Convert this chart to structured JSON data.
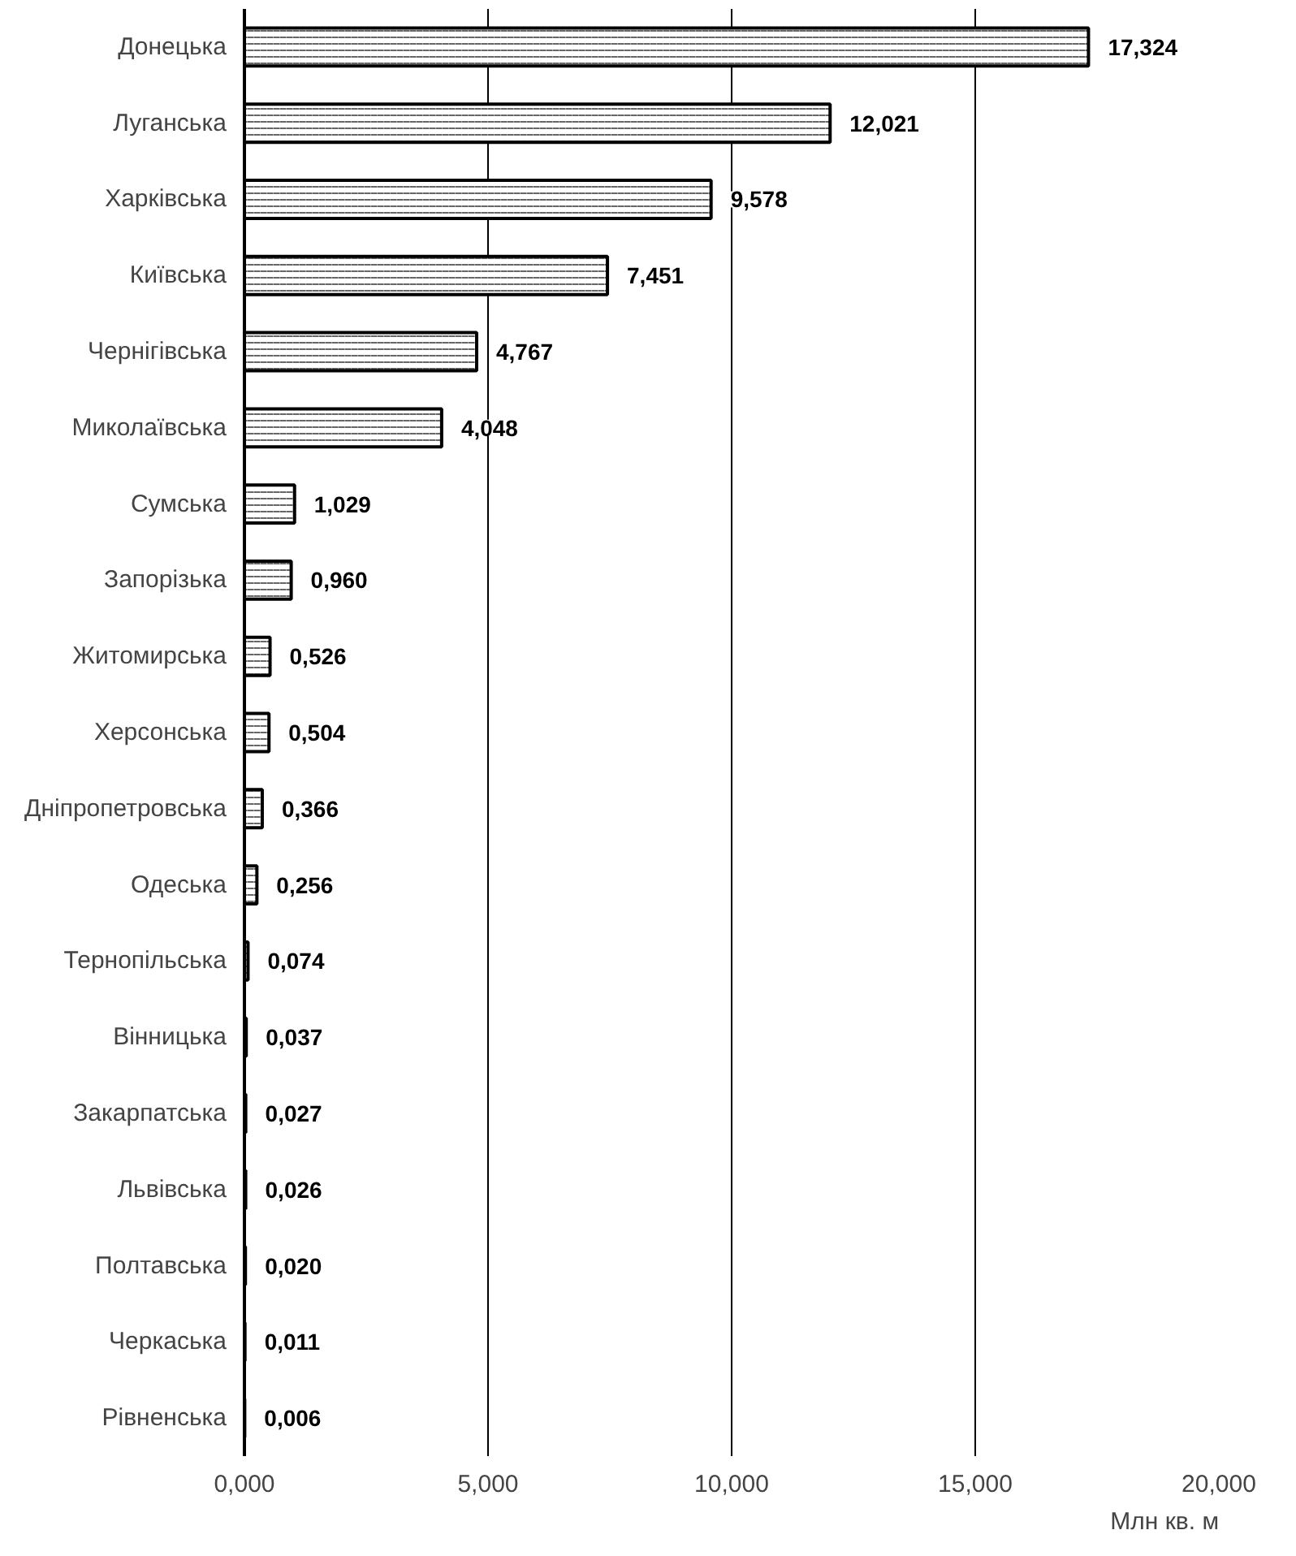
{
  "chart_data": {
    "type": "bar",
    "orientation": "horizontal",
    "xlabel": "Млн кв. м",
    "categories": [
      "Донецька",
      "Луганська",
      "Харківська",
      "Київська",
      "Чернігівська",
      "Миколаївська",
      "Сумська",
      "Запорізька",
      "Житомирська",
      "Херсонська",
      "Дніпропетровська",
      "Одеська",
      "Тернопільська",
      "Вінницька",
      "Закарпатська",
      "Львівська",
      "Полтавська",
      "Черкаська",
      "Рівненська"
    ],
    "values": [
      17.324,
      12.021,
      9.578,
      7.451,
      4.767,
      4.048,
      1.029,
      0.96,
      0.526,
      0.504,
      0.366,
      0.256,
      0.074,
      0.037,
      0.027,
      0.026,
      0.02,
      0.011,
      0.006
    ],
    "value_labels": [
      "17,324",
      "12,021",
      "9,578",
      "7,451",
      "4,767",
      "4,048",
      "1,029",
      "0,960",
      "0,526",
      "0,504",
      "0,366",
      "0,256",
      "0,074",
      "0,037",
      "0,027",
      "0,026",
      "0,020",
      "0,011",
      "0,006"
    ],
    "color": "#000000",
    "xlim": [
      0,
      20
    ],
    "xticks": [
      {
        "value": 0,
        "label": "0,000"
      },
      {
        "value": 5,
        "label": "5,000"
      },
      {
        "value": 10,
        "label": "10,000"
      },
      {
        "value": 15,
        "label": "15,000"
      },
      {
        "value": 20,
        "label": "20,000"
      }
    ],
    "grid": "x"
  }
}
